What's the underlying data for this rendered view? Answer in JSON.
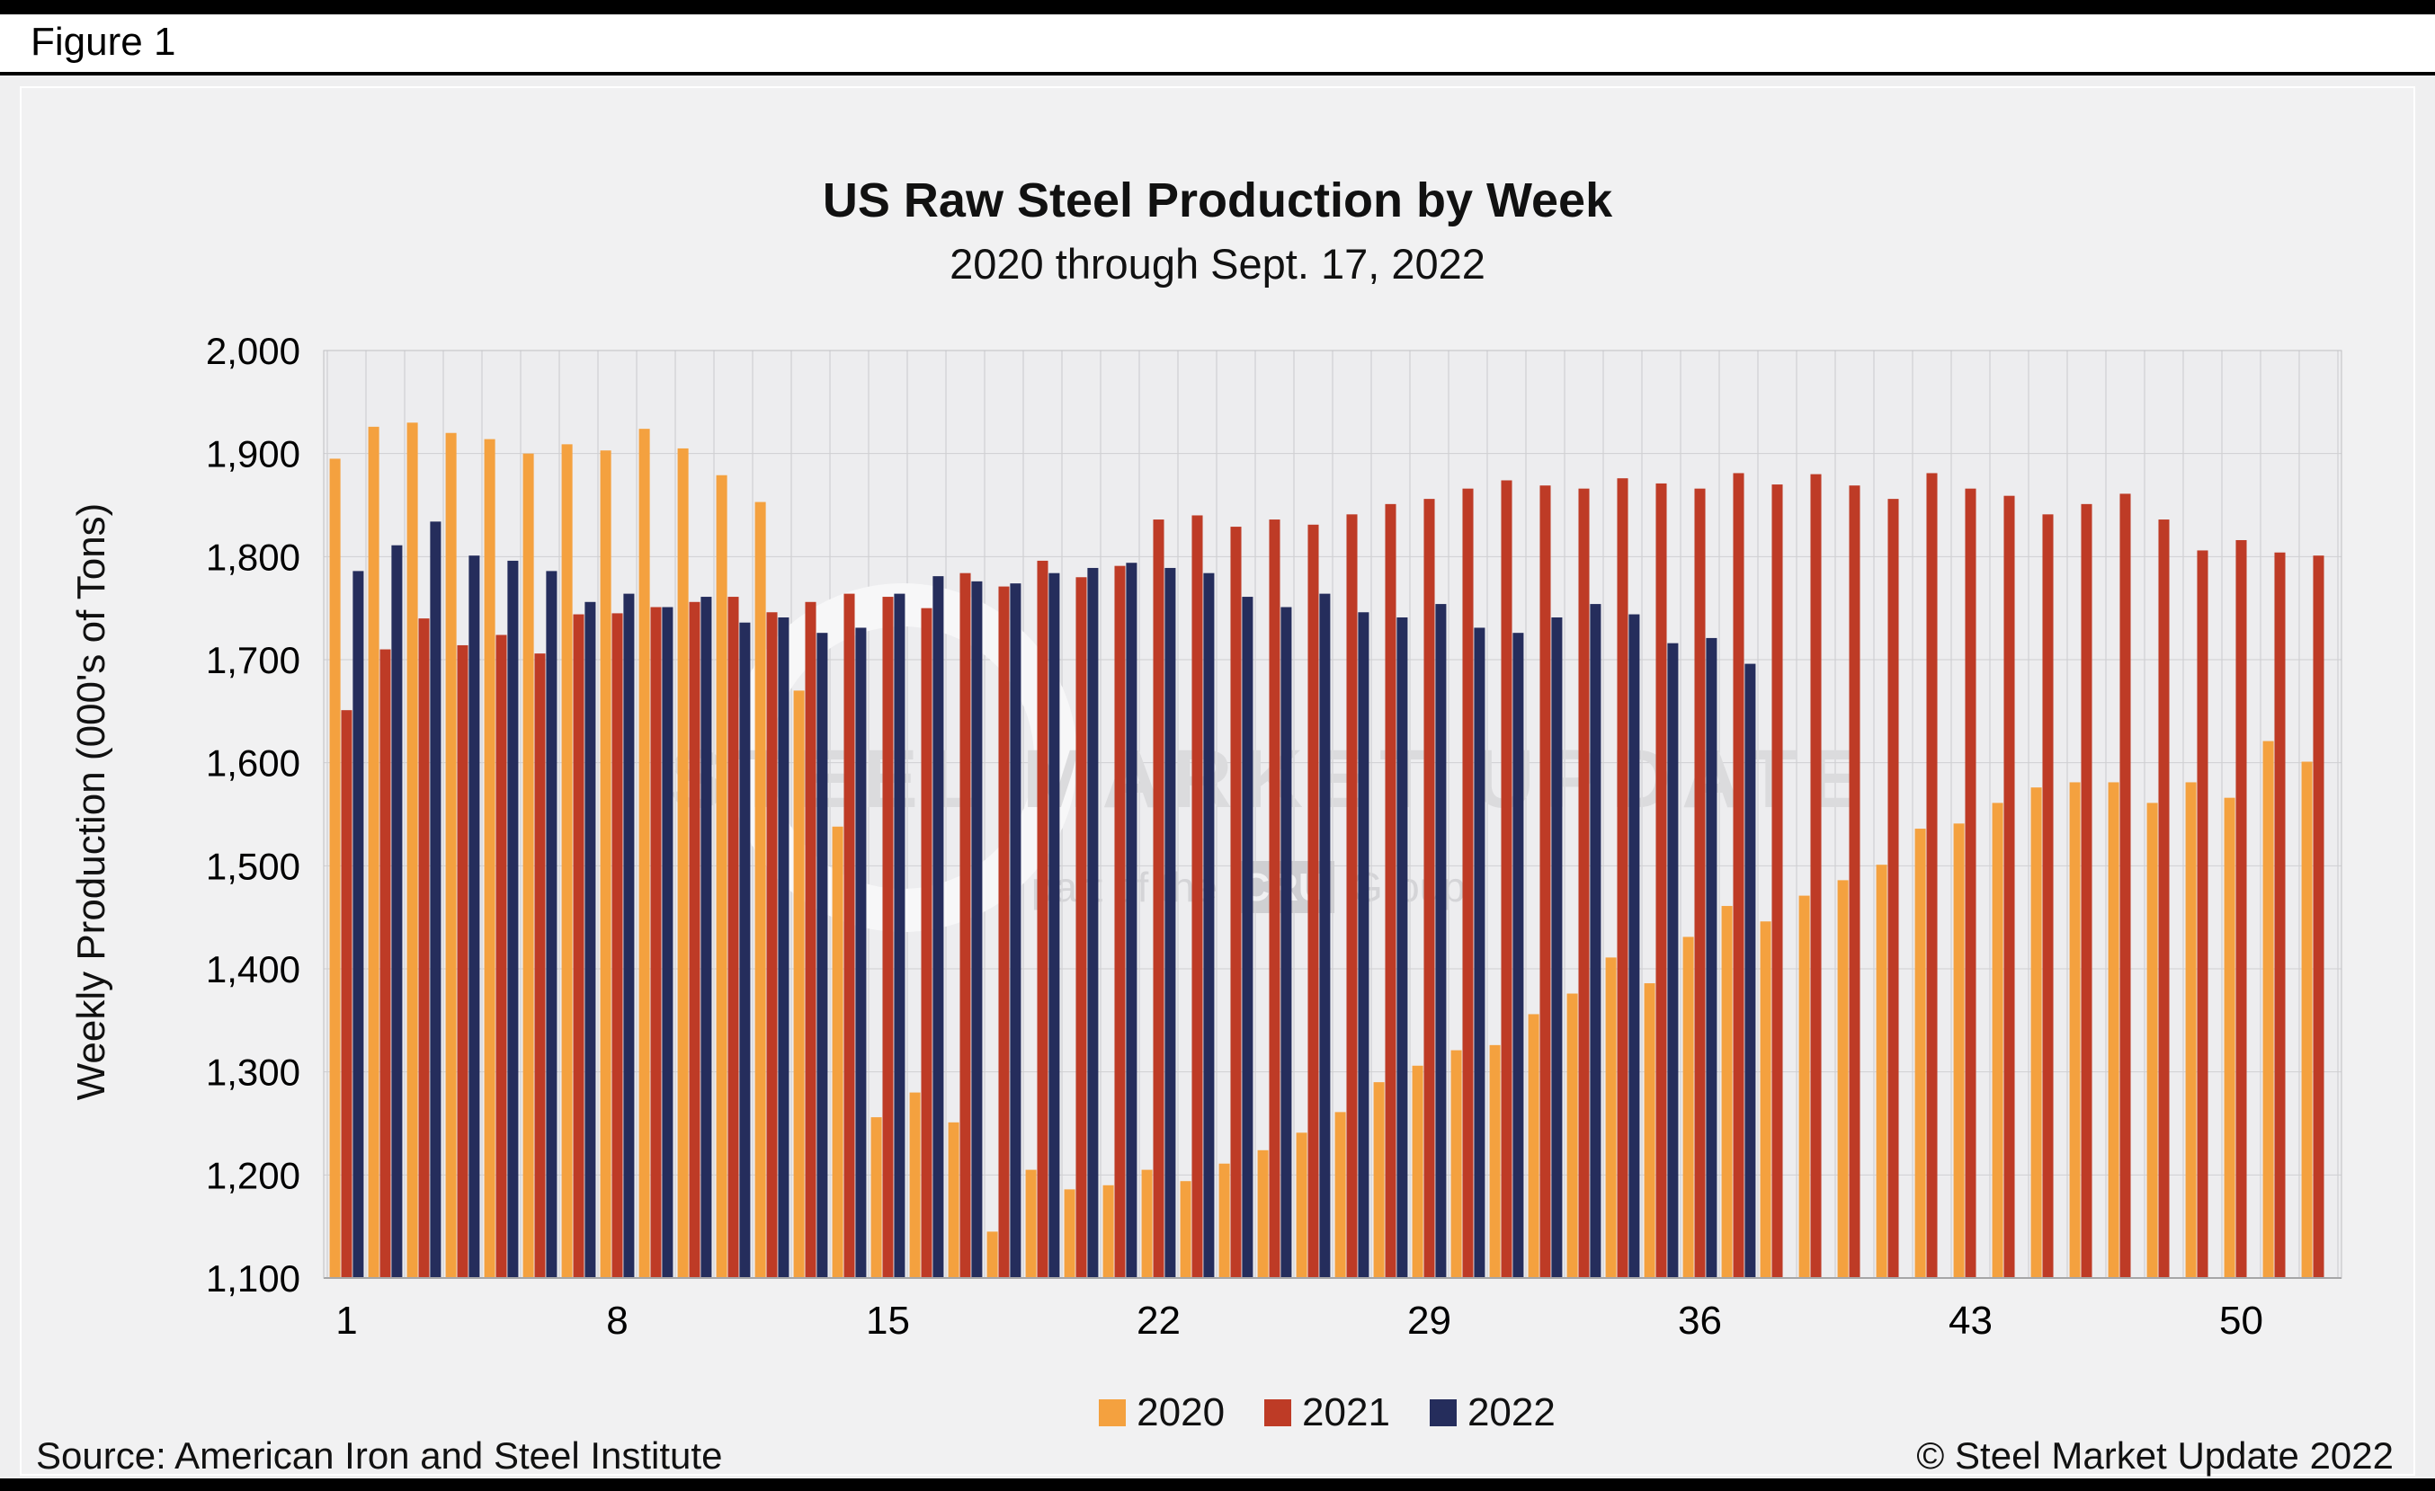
{
  "figure_label": "Figure 1",
  "chart_data": {
    "type": "bar",
    "title": "US Raw Steel Production by Week",
    "subtitle": "2020 through Sept. 17, 2022",
    "xlabel": "",
    "ylabel": "Weekly Production (000's of Tons)",
    "ylim": [
      1100,
      2000
    ],
    "weeks": 52,
    "grid": true,
    "legend_position": "bottom",
    "y_ticks": [
      1100,
      1200,
      1300,
      1400,
      1500,
      1600,
      1700,
      1800,
      1900,
      2000
    ],
    "y_tick_labels": [
      "1,100",
      "1,200",
      "1,300",
      "1,400",
      "1,500",
      "1,600",
      "1,700",
      "1,800",
      "1,900",
      "2,000"
    ],
    "x_ticks": [
      1,
      8,
      15,
      22,
      29,
      36,
      43,
      50
    ],
    "series": [
      {
        "name": "2020",
        "color": "#F4A13F",
        "values": [
          1895,
          1926,
          1930,
          1920,
          1914,
          1900,
          1909,
          1903,
          1924,
          1905,
          1879,
          1853,
          1670,
          1538,
          1256,
          1280,
          1251,
          1145,
          1205,
          1186,
          1190,
          1205,
          1194,
          1211,
          1224,
          1241,
          1261,
          1290,
          1306,
          1321,
          1326,
          1356,
          1376,
          1411,
          1386,
          1431,
          1461,
          1446,
          1471,
          1486,
          1501,
          1536,
          1541,
          1561,
          1576,
          1581,
          1581,
          1561,
          1581,
          1566,
          1621,
          1601
        ]
      },
      {
        "name": "2021",
        "color": "#BE3B26",
        "values": [
          1651,
          1710,
          1740,
          1714,
          1724,
          1706,
          1744,
          1745,
          1751,
          1756,
          1761,
          1746,
          1756,
          1764,
          1761,
          1750,
          1784,
          1771,
          1796,
          1780,
          1791,
          1836,
          1840,
          1829,
          1836,
          1831,
          1841,
          1851,
          1856,
          1866,
          1874,
          1869,
          1866,
          1876,
          1871,
          1866,
          1881,
          1870,
          1880,
          1869,
          1856,
          1881,
          1866,
          1859,
          1841,
          1851,
          1861,
          1836,
          1806,
          1816,
          1804,
          1801
        ]
      },
      {
        "name": "2022",
        "color": "#252D5C",
        "values": [
          1786,
          1811,
          1834,
          1801,
          1796,
          1786,
          1756,
          1764,
          1751,
          1761,
          1736,
          1741,
          1726,
          1731,
          1764,
          1781,
          1776,
          1774,
          1784,
          1789,
          1794,
          1789,
          1784,
          1761,
          1751,
          1764,
          1746,
          1741,
          1754,
          1731,
          1726,
          1741,
          1754,
          1744,
          1716,
          1721,
          1696
        ]
      }
    ]
  },
  "watermark": {
    "main": "STEEL MARKET UPDATE",
    "sub_prefix": "part of the",
    "sub_brand": "CRU",
    "sub_suffix": "Group"
  },
  "footer": {
    "source": "Source: American Iron and Steel Institute",
    "copyright": "© Steel Market Update 2022"
  }
}
